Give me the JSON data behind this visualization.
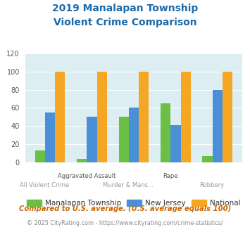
{
  "title_line1": "2019 Manalapan Township",
  "title_line2": "Violent Crime Comparison",
  "categories": [
    "All Violent Crime",
    "Aggravated Assault",
    "Murder & Mans...",
    "Rape",
    "Robbery"
  ],
  "top_labels": [
    "",
    "Aggravated Assault",
    "",
    "Rape",
    ""
  ],
  "bottom_labels": [
    "All Violent Crime",
    "",
    "Murder & Mans...",
    "",
    "Robbery"
  ],
  "manalapan": [
    13,
    4,
    50,
    65,
    7
  ],
  "new_jersey": [
    55,
    50,
    60,
    41,
    80
  ],
  "national": [
    100,
    100,
    100,
    100,
    100
  ],
  "colors": {
    "manalapan": "#6abf45",
    "new_jersey": "#4a90d9",
    "national": "#f5a623"
  },
  "ylim": [
    0,
    120
  ],
  "yticks": [
    0,
    20,
    40,
    60,
    80,
    100,
    120
  ],
  "background_color": "#ddeef3",
  "title_color": "#1a6aab",
  "legend_labels": [
    "Manalapan Township",
    "New Jersey",
    "National"
  ],
  "footnote1": "Compared to U.S. average. (U.S. average equals 100)",
  "footnote2": "© 2025 CityRating.com - https://www.cityrating.com/crime-statistics/",
  "footnote1_color": "#cc6600",
  "footnote2_color": "#888888",
  "footnote2_link_color": "#4a90d9"
}
